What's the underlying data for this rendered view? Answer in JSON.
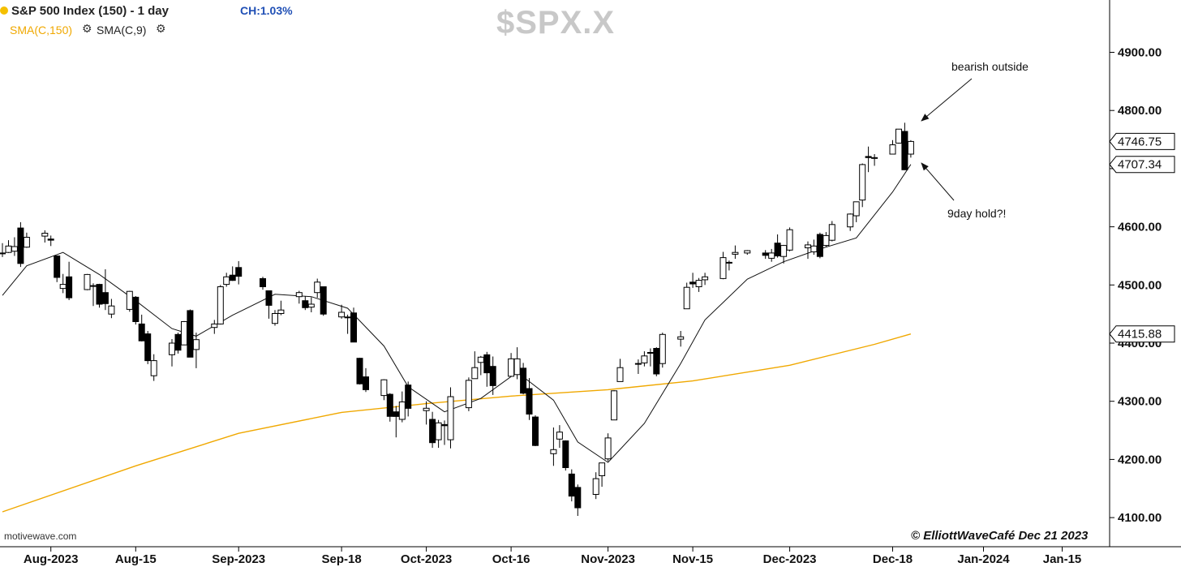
{
  "header": {
    "title": "S&P 500 Index (150) - 1 day",
    "change": "CH:1.03%",
    "sma_long": "SMA(C,150)",
    "sma_short": "SMA(C,9)",
    "symbol": "$SPX.X",
    "source": "motivewave.com",
    "copyright": "© ElliottWaveCafé Dec 21 2023"
  },
  "icons": [
    "settings-gear-icon",
    "status-dot-icon"
  ],
  "colors": {
    "status_dot": "#f5c000",
    "change_text": "#1f4fb5",
    "sma_long": "#f0a800",
    "sma_short": "#111111",
    "candle_up": "#ffffff",
    "candle_down": "#000000",
    "symbol_watermark": "#c8c8c8"
  },
  "chart_data": {
    "type": "candlestick",
    "ylim": [
      4050,
      4990
    ],
    "y_ticks": [
      "4100.00",
      "4200.00",
      "4300.00",
      "4400.00",
      "4500.00",
      "4600.00",
      "4700.00",
      "4800.00",
      "4900.00"
    ],
    "x_ticks": [
      "Aug-2023",
      "Aug-15",
      "Sep-2023",
      "Sep-18",
      "Oct-2023",
      "Oct-16",
      "Nov-2023",
      "Nov-15",
      "Dec-2023",
      "Dec-18",
      "Jan-2024",
      "Jan-15"
    ],
    "price_labels": [
      {
        "value": 4746.75,
        "text": "4746.75"
      },
      {
        "value": 4707.34,
        "text": "4707.34"
      },
      {
        "value": 4415.88,
        "text": "4415.88"
      }
    ],
    "annotations": [
      {
        "text": "bearish outside",
        "target_date": "2023-12-20"
      },
      {
        "text": "9day hold?!",
        "target_date": "2023-12-20"
      }
    ],
    "candles": [
      {
        "date": "2023-07-24",
        "o": 4555,
        "h": 4572,
        "l": 4548,
        "c": 4555
      },
      {
        "date": "2023-07-25",
        "o": 4556,
        "h": 4577,
        "l": 4555,
        "c": 4567
      },
      {
        "date": "2023-07-26",
        "o": 4558,
        "h": 4582,
        "l": 4550,
        "c": 4566
      },
      {
        "date": "2023-07-27",
        "o": 4598,
        "h": 4608,
        "l": 4531,
        "c": 4537
      },
      {
        "date": "2023-07-28",
        "o": 4565,
        "h": 4590,
        "l": 4564,
        "c": 4582
      },
      {
        "date": "2023-07-31",
        "o": 4584,
        "h": 4594,
        "l": 4573,
        "c": 4589
      },
      {
        "date": "2023-08-01",
        "o": 4579,
        "h": 4585,
        "l": 4567,
        "c": 4577
      },
      {
        "date": "2023-08-02",
        "o": 4550,
        "h": 4550,
        "l": 4505,
        "c": 4513
      },
      {
        "date": "2023-08-03",
        "o": 4494,
        "h": 4519,
        "l": 4486,
        "c": 4501
      },
      {
        "date": "2023-08-04",
        "o": 4514,
        "h": 4540,
        "l": 4474,
        "c": 4478
      },
      {
        "date": "2023-08-07",
        "o": 4492,
        "h": 4519,
        "l": 4491,
        "c": 4518
      },
      {
        "date": "2023-08-08",
        "o": 4498,
        "h": 4503,
        "l": 4464,
        "c": 4499
      },
      {
        "date": "2023-08-09",
        "o": 4501,
        "h": 4502,
        "l": 4461,
        "c": 4467
      },
      {
        "date": "2023-08-10",
        "o": 4487,
        "h": 4527,
        "l": 4457,
        "c": 4468
      },
      {
        "date": "2023-08-11",
        "o": 4450,
        "h": 4476,
        "l": 4443,
        "c": 4464
      },
      {
        "date": "2023-08-14",
        "o": 4458,
        "h": 4490,
        "l": 4454,
        "c": 4489
      },
      {
        "date": "2023-08-15",
        "o": 4479,
        "h": 4481,
        "l": 4432,
        "c": 4437
      },
      {
        "date": "2023-08-16",
        "o": 4433,
        "h": 4449,
        "l": 4403,
        "c": 4404
      },
      {
        "date": "2023-08-17",
        "o": 4416,
        "h": 4421,
        "l": 4364,
        "c": 4370
      },
      {
        "date": "2023-08-18",
        "o": 4344,
        "h": 4381,
        "l": 4335,
        "c": 4370
      },
      {
        "date": "2023-08-21",
        "o": 4380,
        "h": 4407,
        "l": 4360,
        "c": 4400
      },
      {
        "date": "2023-08-22",
        "o": 4415,
        "h": 4418,
        "l": 4382,
        "c": 4388
      },
      {
        "date": "2023-08-23",
        "o": 4397,
        "h": 4438,
        "l": 4397,
        "c": 4437
      },
      {
        "date": "2023-08-24",
        "o": 4456,
        "h": 4458,
        "l": 4376,
        "c": 4376
      },
      {
        "date": "2023-08-25",
        "o": 4389,
        "h": 4418,
        "l": 4357,
        "c": 4406
      },
      {
        "date": "2023-08-28",
        "o": 4427,
        "h": 4440,
        "l": 4416,
        "c": 4433
      },
      {
        "date": "2023-08-29",
        "o": 4433,
        "h": 4500,
        "l": 4432,
        "c": 4497
      },
      {
        "date": "2023-08-30",
        "o": 4501,
        "h": 4521,
        "l": 4497,
        "c": 4514
      },
      {
        "date": "2023-08-31",
        "o": 4517,
        "h": 4532,
        "l": 4507,
        "c": 4508
      },
      {
        "date": "2023-09-01",
        "o": 4530,
        "h": 4541,
        "l": 4501,
        "c": 4515
      },
      {
        "date": "2023-09-05",
        "o": 4511,
        "h": 4514,
        "l": 4492,
        "c": 4497
      },
      {
        "date": "2023-09-06",
        "o": 4490,
        "h": 4490,
        "l": 4442,
        "c": 4465
      },
      {
        "date": "2023-09-07",
        "o": 4434,
        "h": 4457,
        "l": 4430,
        "c": 4451
      },
      {
        "date": "2023-09-08",
        "o": 4451,
        "h": 4473,
        "l": 4448,
        "c": 4457
      },
      {
        "date": "2023-09-11",
        "o": 4480,
        "h": 4490,
        "l": 4468,
        "c": 4487
      },
      {
        "date": "2023-09-12",
        "o": 4473,
        "h": 4481,
        "l": 4457,
        "c": 4461
      },
      {
        "date": "2023-09-13",
        "o": 4462,
        "h": 4479,
        "l": 4453,
        "c": 4467
      },
      {
        "date": "2023-09-14",
        "o": 4487,
        "h": 4511,
        "l": 4478,
        "c": 4505
      },
      {
        "date": "2023-09-15",
        "o": 4497,
        "h": 4497,
        "l": 4447,
        "c": 4450
      },
      {
        "date": "2023-09-18",
        "o": 4445,
        "h": 4466,
        "l": 4442,
        "c": 4453
      },
      {
        "date": "2023-09-19",
        "o": 4445,
        "h": 4449,
        "l": 4416,
        "c": 4444
      },
      {
        "date": "2023-09-20",
        "o": 4452,
        "h": 4461,
        "l": 4402,
        "c": 4402
      },
      {
        "date": "2023-09-21",
        "o": 4374,
        "h": 4375,
        "l": 4329,
        "c": 4330
      },
      {
        "date": "2023-09-22",
        "o": 4342,
        "h": 4357,
        "l": 4316,
        "c": 4320
      },
      {
        "date": "2023-09-25",
        "o": 4310,
        "h": 4338,
        "l": 4302,
        "c": 4337
      },
      {
        "date": "2023-09-26",
        "o": 4312,
        "h": 4314,
        "l": 4265,
        "c": 4274
      },
      {
        "date": "2023-09-27",
        "o": 4282,
        "h": 4292,
        "l": 4238,
        "c": 4274
      },
      {
        "date": "2023-09-28",
        "o": 4269,
        "h": 4317,
        "l": 4264,
        "c": 4299
      },
      {
        "date": "2023-09-29",
        "o": 4328,
        "h": 4334,
        "l": 4274,
        "c": 4288
      },
      {
        "date": "2023-10-02",
        "o": 4284,
        "h": 4300,
        "l": 4260,
        "c": 4288
      },
      {
        "date": "2023-10-03",
        "o": 4269,
        "h": 4282,
        "l": 4220,
        "c": 4229
      },
      {
        "date": "2023-10-04",
        "o": 4234,
        "h": 4268,
        "l": 4220,
        "c": 4263
      },
      {
        "date": "2023-10-05",
        "o": 4260,
        "h": 4267,
        "l": 4225,
        "c": 4258
      },
      {
        "date": "2023-10-06",
        "o": 4234,
        "h": 4324,
        "l": 4219,
        "c": 4308
      },
      {
        "date": "2023-10-09",
        "o": 4289,
        "h": 4341,
        "l": 4283,
        "c": 4336
      },
      {
        "date": "2023-10-10",
        "o": 4339,
        "h": 4386,
        "l": 4339,
        "c": 4358
      },
      {
        "date": "2023-10-11",
        "o": 4367,
        "h": 4378,
        "l": 4345,
        "c": 4376
      },
      {
        "date": "2023-10-12",
        "o": 4380,
        "h": 4385,
        "l": 4325,
        "c": 4349
      },
      {
        "date": "2023-10-13",
        "o": 4360,
        "h": 4377,
        "l": 4311,
        "c": 4327
      },
      {
        "date": "2023-10-16",
        "o": 4343,
        "h": 4383,
        "l": 4343,
        "c": 4373
      },
      {
        "date": "2023-10-17",
        "o": 4346,
        "h": 4393,
        "l": 4338,
        "c": 4373
      },
      {
        "date": "2023-10-18",
        "o": 4357,
        "h": 4366,
        "l": 4312,
        "c": 4314
      },
      {
        "date": "2023-10-19",
        "o": 4322,
        "h": 4340,
        "l": 4268,
        "c": 4278
      },
      {
        "date": "2023-10-20",
        "o": 4273,
        "h": 4276,
        "l": 4223,
        "c": 4224
      },
      {
        "date": "2023-10-23",
        "o": 4210,
        "h": 4255,
        "l": 4189,
        "c": 4217
      },
      {
        "date": "2023-10-24",
        "o": 4235,
        "h": 4259,
        "l": 4220,
        "c": 4247
      },
      {
        "date": "2023-10-25",
        "o": 4232,
        "h": 4233,
        "l": 4181,
        "c": 4186
      },
      {
        "date": "2023-10-26",
        "o": 4175,
        "h": 4183,
        "l": 4128,
        "c": 4137
      },
      {
        "date": "2023-10-27",
        "o": 4152,
        "h": 4157,
        "l": 4103,
        "c": 4117
      },
      {
        "date": "2023-10-30",
        "o": 4140,
        "h": 4178,
        "l": 4132,
        "c": 4167
      },
      {
        "date": "2023-10-31",
        "o": 4172,
        "h": 4194,
        "l": 4153,
        "c": 4194
      },
      {
        "date": "2023-11-01",
        "o": 4201,
        "h": 4245,
        "l": 4197,
        "c": 4237
      },
      {
        "date": "2023-11-02",
        "o": 4268,
        "h": 4319,
        "l": 4268,
        "c": 4318
      },
      {
        "date": "2023-11-03",
        "o": 4334,
        "h": 4373,
        "l": 4334,
        "c": 4358
      },
      {
        "date": "2023-11-06",
        "o": 4364,
        "h": 4372,
        "l": 4347,
        "c": 4365
      },
      {
        "date": "2023-11-07",
        "o": 4366,
        "h": 4386,
        "l": 4360,
        "c": 4378
      },
      {
        "date": "2023-11-08",
        "o": 4384,
        "h": 4391,
        "l": 4360,
        "c": 4383
      },
      {
        "date": "2023-11-09",
        "o": 4391,
        "h": 4393,
        "l": 4343,
        "c": 4347
      },
      {
        "date": "2023-11-10",
        "o": 4365,
        "h": 4418,
        "l": 4358,
        "c": 4415
      },
      {
        "date": "2023-11-13",
        "o": 4407,
        "h": 4421,
        "l": 4394,
        "c": 4411
      },
      {
        "date": "2023-11-14",
        "o": 4459,
        "h": 4504,
        "l": 4459,
        "c": 4496
      },
      {
        "date": "2023-11-15",
        "o": 4505,
        "h": 4521,
        "l": 4495,
        "c": 4502
      },
      {
        "date": "2023-11-16",
        "o": 4497,
        "h": 4512,
        "l": 4488,
        "c": 4508
      },
      {
        "date": "2023-11-17",
        "o": 4509,
        "h": 4521,
        "l": 4500,
        "c": 4514
      },
      {
        "date": "2023-11-20",
        "o": 4511,
        "h": 4557,
        "l": 4510,
        "c": 4547
      },
      {
        "date": "2023-11-21",
        "o": 4539,
        "h": 4542,
        "l": 4525,
        "c": 4538
      },
      {
        "date": "2023-11-22",
        "o": 4553,
        "h": 4568,
        "l": 4545,
        "c": 4556
      },
      {
        "date": "2023-11-24",
        "o": 4555,
        "h": 4560,
        "l": 4552,
        "c": 4559
      },
      {
        "date": "2023-11-27",
        "o": 4555,
        "h": 4560,
        "l": 4545,
        "c": 4551
      },
      {
        "date": "2023-11-28",
        "o": 4546,
        "h": 4562,
        "l": 4540,
        "c": 4555
      },
      {
        "date": "2023-11-29",
        "o": 4572,
        "h": 4587,
        "l": 4547,
        "c": 4550
      },
      {
        "date": "2023-11-30",
        "o": 4549,
        "h": 4569,
        "l": 4537,
        "c": 4568
      },
      {
        "date": "2023-12-01",
        "o": 4560,
        "h": 4599,
        "l": 4558,
        "c": 4595
      },
      {
        "date": "2023-12-04",
        "o": 4564,
        "h": 4575,
        "l": 4545,
        "c": 4569
      },
      {
        "date": "2023-12-05",
        "o": 4557,
        "h": 4578,
        "l": 4552,
        "c": 4567
      },
      {
        "date": "2023-12-06",
        "o": 4587,
        "h": 4590,
        "l": 4546,
        "c": 4549
      },
      {
        "date": "2023-12-07",
        "o": 4568,
        "h": 4591,
        "l": 4566,
        "c": 4585
      },
      {
        "date": "2023-12-08",
        "o": 4577,
        "h": 4610,
        "l": 4575,
        "c": 4604
      },
      {
        "date": "2023-12-11",
        "o": 4600,
        "h": 4623,
        "l": 4593,
        "c": 4622
      },
      {
        "date": "2023-12-12",
        "o": 4619,
        "h": 4643,
        "l": 4608,
        "c": 4643
      },
      {
        "date": "2023-12-13",
        "o": 4646,
        "h": 4709,
        "l": 4634,
        "c": 4707
      },
      {
        "date": "2023-12-14",
        "o": 4721,
        "h": 4738,
        "l": 4694,
        "c": 4719
      },
      {
        "date": "2023-12-15",
        "o": 4719,
        "h": 4725,
        "l": 4705,
        "c": 4719
      },
      {
        "date": "2023-12-18",
        "o": 4725,
        "h": 4749,
        "l": 4725,
        "c": 4741
      },
      {
        "date": "2023-12-19",
        "o": 4744,
        "h": 4768,
        "l": 4743,
        "c": 4768
      },
      {
        "date": "2023-12-20",
        "o": 4764,
        "h": 4779,
        "l": 4698,
        "c": 4698
      },
      {
        "date": "2023-12-21",
        "o": 4725,
        "h": 4749,
        "l": 4719,
        "c": 4746.75
      }
    ],
    "sma_long": {
      "name": "SMA(C,150)",
      "points": [
        {
          "date": "2023-07-24",
          "value": 4110
        },
        {
          "date": "2023-08-15",
          "value": 4189
        },
        {
          "date": "2023-09-01",
          "value": 4245
        },
        {
          "date": "2023-09-18",
          "value": 4281
        },
        {
          "date": "2023-10-02",
          "value": 4296
        },
        {
          "date": "2023-10-16",
          "value": 4309
        },
        {
          "date": "2023-11-01",
          "value": 4320
        },
        {
          "date": "2023-11-15",
          "value": 4335
        },
        {
          "date": "2023-12-01",
          "value": 4362
        },
        {
          "date": "2023-12-15",
          "value": 4398
        },
        {
          "date": "2023-12-21",
          "value": 4415.88
        }
      ]
    },
    "sma_short": {
      "name": "SMA(C,9)",
      "points": [
        {
          "date": "2023-07-24",
          "value": 4482
        },
        {
          "date": "2023-07-28",
          "value": 4533
        },
        {
          "date": "2023-08-03",
          "value": 4556
        },
        {
          "date": "2023-08-09",
          "value": 4518
        },
        {
          "date": "2023-08-15",
          "value": 4473
        },
        {
          "date": "2023-08-21",
          "value": 4425
        },
        {
          "date": "2023-08-25",
          "value": 4412
        },
        {
          "date": "2023-08-31",
          "value": 4448
        },
        {
          "date": "2023-09-07",
          "value": 4484
        },
        {
          "date": "2023-09-13",
          "value": 4480
        },
        {
          "date": "2023-09-19",
          "value": 4460
        },
        {
          "date": "2023-09-25",
          "value": 4395
        },
        {
          "date": "2023-09-29",
          "value": 4325
        },
        {
          "date": "2023-10-05",
          "value": 4282
        },
        {
          "date": "2023-10-11",
          "value": 4305
        },
        {
          "date": "2023-10-17",
          "value": 4350
        },
        {
          "date": "2023-10-23",
          "value": 4302
        },
        {
          "date": "2023-10-27",
          "value": 4230
        },
        {
          "date": "2023-11-01",
          "value": 4195
        },
        {
          "date": "2023-11-07",
          "value": 4262
        },
        {
          "date": "2023-11-13",
          "value": 4365
        },
        {
          "date": "2023-11-17",
          "value": 4440
        },
        {
          "date": "2023-11-24",
          "value": 4510
        },
        {
          "date": "2023-11-30",
          "value": 4540
        },
        {
          "date": "2023-12-06",
          "value": 4562
        },
        {
          "date": "2023-12-12",
          "value": 4581
        },
        {
          "date": "2023-12-18",
          "value": 4660
        },
        {
          "date": "2023-12-21",
          "value": 4707.34
        }
      ]
    }
  }
}
